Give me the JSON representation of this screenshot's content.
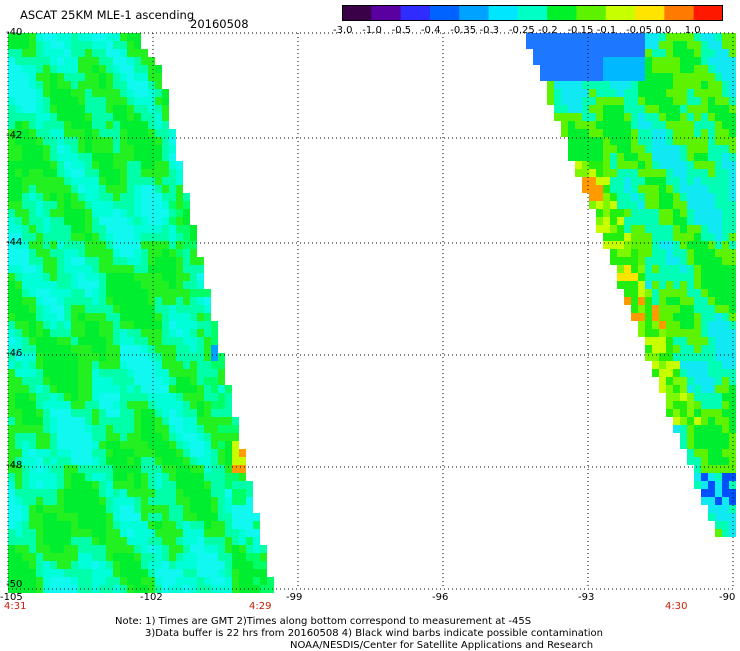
{
  "header": {
    "title": "ASCAT 25KM MLE-1 ascending",
    "date": "20160508"
  },
  "colorbar": {
    "tick_labels": [
      "-3.0",
      "-1.0",
      "-0.5",
      "-0.4",
      "-0.35",
      "-0.3",
      "-0.25",
      "-0.2",
      "-0.15",
      "-0.1",
      "-0.05",
      "0.0",
      "1.0"
    ],
    "colors": [
      "#3a0048",
      "#5a00a0",
      "#2f2cff",
      "#0062ff",
      "#00a2ff",
      "#00e6ff",
      "#00ffc4",
      "#00f02a",
      "#5cf200",
      "#c8ff00",
      "#ffe400",
      "#ff7a00",
      "#ff1800"
    ]
  },
  "axes": {
    "lat_labels": [
      "-40",
      "-42",
      "-44",
      "-46",
      "-48",
      "-50"
    ],
    "lon_labels": [
      "-105",
      "-102",
      "-99",
      "-96",
      "-93",
      "-90"
    ],
    "time_labels": [
      "4:31",
      "4:29",
      "4:30"
    ]
  },
  "notes": {
    "line1": "Note: 1) Times are GMT 2)Times along bottom correspond to measurement at -45S",
    "line2": "3)Data buffer is 22 hrs from 20160508 4) Black wind barbs indicate possible contamination",
    "line3": "NOAA/NESDIS/Center for Satellite Applications and Research"
  }
}
